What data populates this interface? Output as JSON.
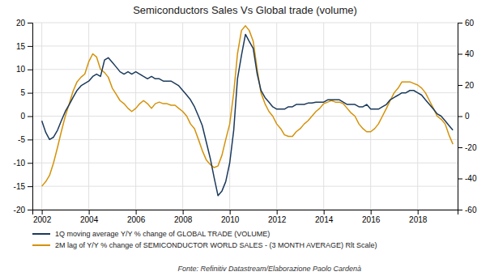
{
  "chart_data": {
    "type": "line",
    "title": "Semiconductors Sales Vs Global trade (volume)",
    "annotations": [
      "Fonte: Refinitiv Datastream/Elaborazione Paolo Cardenà"
    ],
    "x": [
      2002.0,
      2002.17,
      2002.33,
      2002.5,
      2002.67,
      2002.83,
      2003.0,
      2003.17,
      2003.33,
      2003.5,
      2003.67,
      2003.83,
      2004.0,
      2004.17,
      2004.33,
      2004.5,
      2004.67,
      2004.83,
      2005.0,
      2005.17,
      2005.33,
      2005.5,
      2005.67,
      2005.83,
      2006.0,
      2006.17,
      2006.33,
      2006.5,
      2006.67,
      2006.83,
      2007.0,
      2007.17,
      2007.33,
      2007.5,
      2007.67,
      2007.83,
      2008.0,
      2008.17,
      2008.33,
      2008.5,
      2008.67,
      2008.83,
      2009.0,
      2009.17,
      2009.33,
      2009.5,
      2009.67,
      2009.83,
      2010.0,
      2010.17,
      2010.33,
      2010.5,
      2010.67,
      2010.83,
      2011.0,
      2011.17,
      2011.33,
      2011.5,
      2011.67,
      2011.83,
      2012.0,
      2012.17,
      2012.33,
      2012.5,
      2012.67,
      2012.83,
      2013.0,
      2013.17,
      2013.33,
      2013.5,
      2013.67,
      2013.83,
      2014.0,
      2014.17,
      2014.33,
      2014.5,
      2014.67,
      2014.83,
      2015.0,
      2015.17,
      2015.33,
      2015.5,
      2015.67,
      2015.83,
      2016.0,
      2016.17,
      2016.33,
      2016.5,
      2016.67,
      2016.83,
      2017.0,
      2017.17,
      2017.33,
      2017.5,
      2017.67,
      2017.83,
      2018.0,
      2018.17,
      2018.33,
      2018.5,
      2018.67,
      2018.83,
      2019.0,
      2019.17,
      2019.33,
      2019.5
    ],
    "series": [
      {
        "name": "1Q moving average Y/Y % change of GLOBAL TRADE (VOLUME)",
        "color": "#1b3a5c",
        "values": [
          -1.0,
          -3.5,
          -5.0,
          -4.5,
          -3.0,
          -1.0,
          1.0,
          2.5,
          4.0,
          5.5,
          6.5,
          7.0,
          7.5,
          8.5,
          9.0,
          8.5,
          12.0,
          12.5,
          11.5,
          10.5,
          9.5,
          9.0,
          9.5,
          9.0,
          9.5,
          9.0,
          8.5,
          8.0,
          8.5,
          8.0,
          8.0,
          7.5,
          7.5,
          7.5,
          7.0,
          6.5,
          5.5,
          4.5,
          3.5,
          2.0,
          0.0,
          -2.0,
          -5.5,
          -9.0,
          -13.0,
          -17.0,
          -16.0,
          -14.0,
          -10.0,
          -3.0,
          8.0,
          13.0,
          17.5,
          16.0,
          14.5,
          9.0,
          5.5,
          4.0,
          3.0,
          2.0,
          1.5,
          1.5,
          1.5,
          2.0,
          2.0,
          2.5,
          2.5,
          2.5,
          2.8,
          2.8,
          3.0,
          3.0,
          3.0,
          3.5,
          3.5,
          3.5,
          3.5,
          3.0,
          2.5,
          2.5,
          2.5,
          2.0,
          2.0,
          2.5,
          1.5,
          1.5,
          1.5,
          2.0,
          2.5,
          3.5,
          4.0,
          4.5,
          5.0,
          5.0,
          5.5,
          5.5,
          5.0,
          4.5,
          3.5,
          2.5,
          1.5,
          0.5,
          0.0,
          -1.0,
          -2.0,
          -3.0
        ]
      },
      {
        "name": "2M lag of Y/Y % change of SEMICONDUCTOR WORLD SALES - (3 MONTH AVERAGE)   Rlt Scale)",
        "color": "#d4920a",
        "axis": "y2",
        "values": [
          -45.0,
          -42.0,
          -38.0,
          -30.0,
          -20.0,
          -10.0,
          0.0,
          8.0,
          16.0,
          22.0,
          25.0,
          27.0,
          35.0,
          40.0,
          38.0,
          30.0,
          28.0,
          25.0,
          18.0,
          14.0,
          10.0,
          8.0,
          5.0,
          3.0,
          5.0,
          8.0,
          10.0,
          8.0,
          5.0,
          8.0,
          9.0,
          8.0,
          8.0,
          7.0,
          7.0,
          5.0,
          3.0,
          0.0,
          -5.0,
          -8.0,
          -15.0,
          -22.0,
          -28.0,
          -31.0,
          -33.0,
          -32.0,
          -25.0,
          -15.0,
          -5.0,
          15.0,
          40.0,
          55.0,
          58.0,
          55.0,
          48.0,
          30.0,
          15.0,
          8.0,
          3.0,
          0.0,
          -5.0,
          -8.0,
          -12.0,
          -13.0,
          -13.0,
          -10.0,
          -8.0,
          -5.0,
          -3.0,
          0.0,
          3.0,
          5.0,
          8.0,
          9.0,
          10.0,
          9.0,
          9.0,
          8.0,
          5.0,
          2.0,
          0.0,
          -5.0,
          -8.0,
          -10.0,
          -10.0,
          -8.0,
          -5.0,
          0.0,
          5.0,
          10.0,
          15.0,
          18.0,
          22.0,
          22.0,
          22.0,
          21.0,
          20.0,
          18.0,
          15.0,
          10.0,
          5.0,
          0.0,
          -2.0,
          -5.0,
          -12.0,
          -18.0
        ]
      }
    ],
    "xlim": [
      2001.6,
      2019.7
    ],
    "xticks": [
      2002,
      2004,
      2006,
      2008,
      2010,
      2012,
      2014,
      2016,
      2018
    ],
    "ylim": [
      -20,
      20
    ],
    "yticks": [
      -20,
      -15,
      -10,
      -5,
      0,
      5,
      10,
      15,
      20
    ],
    "y2lim": [
      -60,
      60
    ],
    "y2ticks": [
      -60,
      -40,
      -20,
      0,
      20,
      40,
      60
    ],
    "grid": true,
    "legend": "bottom left"
  }
}
